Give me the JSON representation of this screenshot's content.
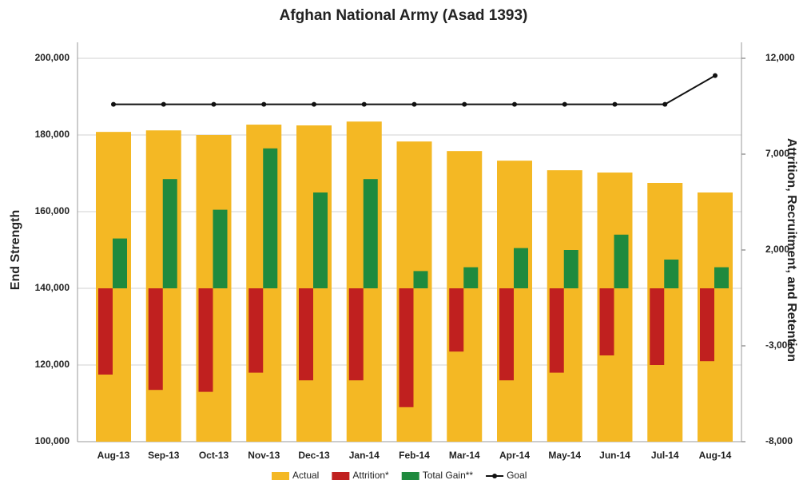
{
  "chart_data": {
    "type": "bar",
    "title": "Afghan National Army (Asad 1393)",
    "y_label": "End Strength",
    "y2_label": "Attrition, Recruitment, and Retention",
    "categories": [
      "Aug-13",
      "Sep-13",
      "Oct-13",
      "Nov-13",
      "Dec-13",
      "Jan-14",
      "Feb-14",
      "Mar-14",
      "Apr-14",
      "May-14",
      "Jun-14",
      "Jul-14",
      "Aug-14"
    ],
    "series": [
      {
        "name": "Actual",
        "color": "#f4b824",
        "type": "bar",
        "axis": "y",
        "values": [
          180800,
          181200,
          180000,
          182700,
          182500,
          183500,
          178300,
          175800,
          173300,
          170800,
          170200,
          167500,
          165000
        ]
      },
      {
        "name": "Attrition*",
        "color": "#c0201f",
        "type": "bar",
        "axis": "y2",
        "values": [
          -4500,
          -5300,
          -5400,
          -4400,
          -4800,
          -4800,
          -6200,
          -3300,
          -4800,
          -4400,
          -3500,
          -4000,
          -3800
        ]
      },
      {
        "name": "Total Gain**",
        "color": "#1f8a3e",
        "type": "bar",
        "axis": "y2",
        "values": [
          2600,
          5700,
          4100,
          7300,
          5000,
          5700,
          900,
          1100,
          2100,
          2000,
          2800,
          1500,
          1100
        ]
      },
      {
        "name": "Goal",
        "color": "#111111",
        "type": "line",
        "axis": "y",
        "values": [
          188000,
          188000,
          188000,
          188000,
          188000,
          188000,
          188000,
          188000,
          188000,
          188000,
          188000,
          188000,
          195500
        ]
      }
    ],
    "ylim": [
      100000,
      200000
    ],
    "yticks": [
      {
        "value": 100000,
        "label": "100,000"
      },
      {
        "value": 120000,
        "label": "120,000"
      },
      {
        "value": 140000,
        "label": "140,000"
      },
      {
        "value": 160000,
        "label": "160,000"
      },
      {
        "value": 180000,
        "label": "180,000"
      },
      {
        "value": 200000,
        "label": "200,000"
      }
    ],
    "y2lim": [
      -8000,
      12000
    ],
    "y2ticks": [
      {
        "value": -8000,
        "label": "-8,000"
      },
      {
        "value": -3000,
        "label": "-3,000"
      },
      {
        "value": 2000,
        "label": "2,000"
      },
      {
        "value": 7000,
        "label": "7,000"
      },
      {
        "value": 12000,
        "label": "12,000"
      }
    ],
    "grid": true,
    "legend": "bottom"
  }
}
